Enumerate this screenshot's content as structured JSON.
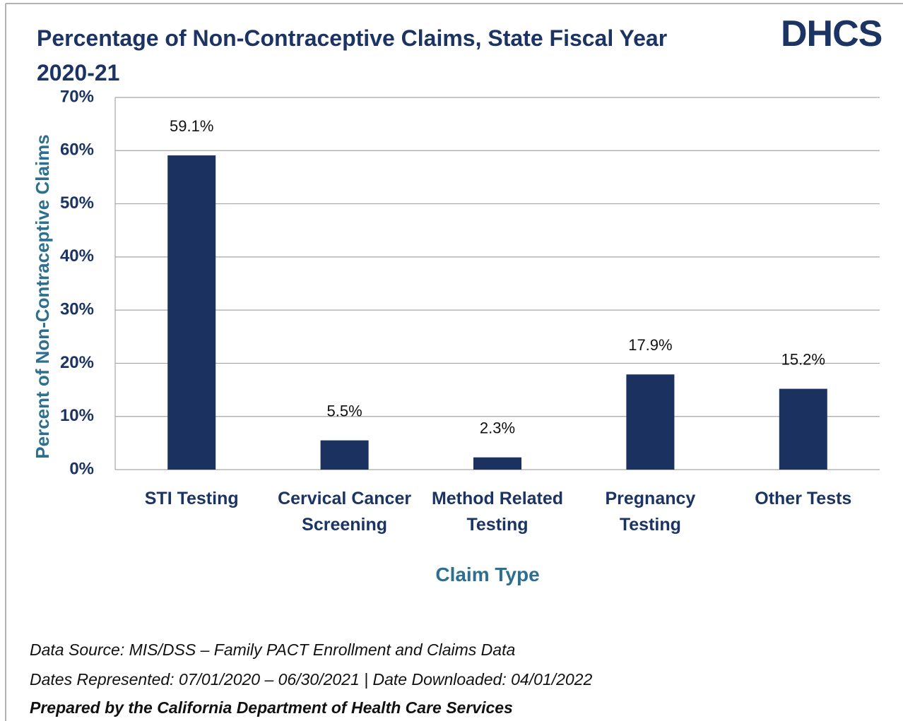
{
  "chart_data": {
    "type": "bar",
    "title": "Percentage of Non-Contraceptive Claims, State Fiscal Year 2020-21",
    "logo": "DHCS",
    "y_label": "Percent of Non-Contraceptive Claims",
    "x_label": "Claim Type",
    "categories": [
      "STI Testing",
      "Cervical Cancer Screening",
      "Method Related Testing",
      "Pregnancy Testing",
      "Other Tests"
    ],
    "values": [
      59.1,
      5.5,
      2.3,
      17.9,
      15.2
    ],
    "value_labels": [
      "59.1%",
      "5.5%",
      "2.3%",
      "17.9%",
      "15.2%"
    ],
    "color": "#1b3160",
    "ylim": [
      0,
      70
    ],
    "yticks": [
      {
        "value": 0,
        "label": "0%"
      },
      {
        "value": 10,
        "label": "10%"
      },
      {
        "value": 20,
        "label": "20%"
      },
      {
        "value": 30,
        "label": "30%"
      },
      {
        "value": 40,
        "label": "40%"
      },
      {
        "value": 50,
        "label": "50%"
      },
      {
        "value": 60,
        "label": "60%"
      },
      {
        "value": 70,
        "label": "70%"
      }
    ],
    "grid": true,
    "footnotes": [
      "Data Source: MIS/DSS – Family PACT Enrollment and Claims Data",
      "Dates Represented: 07/01/2020 – 06/30/2021 | Date Downloaded: 04/01/2022",
      "Prepared by the California Department of Health Care Services"
    ]
  }
}
